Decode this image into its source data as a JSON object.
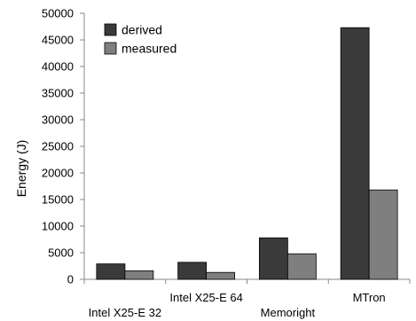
{
  "chart_data": {
    "type": "bar",
    "ylabel": "Energy (J)",
    "xlabel": "",
    "ylim": [
      0,
      50000
    ],
    "yticks": [
      0,
      5000,
      10000,
      15000,
      20000,
      25000,
      30000,
      35000,
      40000,
      45000,
      50000
    ],
    "categories": [
      "Intel X25-E 32",
      "Intel X25-E 64",
      "Memoright",
      "MTron"
    ],
    "series": [
      {
        "name": "derived",
        "color": "#3a3a3a",
        "values": [
          2900,
          3200,
          7800,
          47300
        ]
      },
      {
        "name": "measured",
        "color": "#7f7f7f",
        "values": [
          1600,
          1300,
          4800,
          16800
        ]
      }
    ],
    "legend_position": "top-left",
    "grid": false
  }
}
